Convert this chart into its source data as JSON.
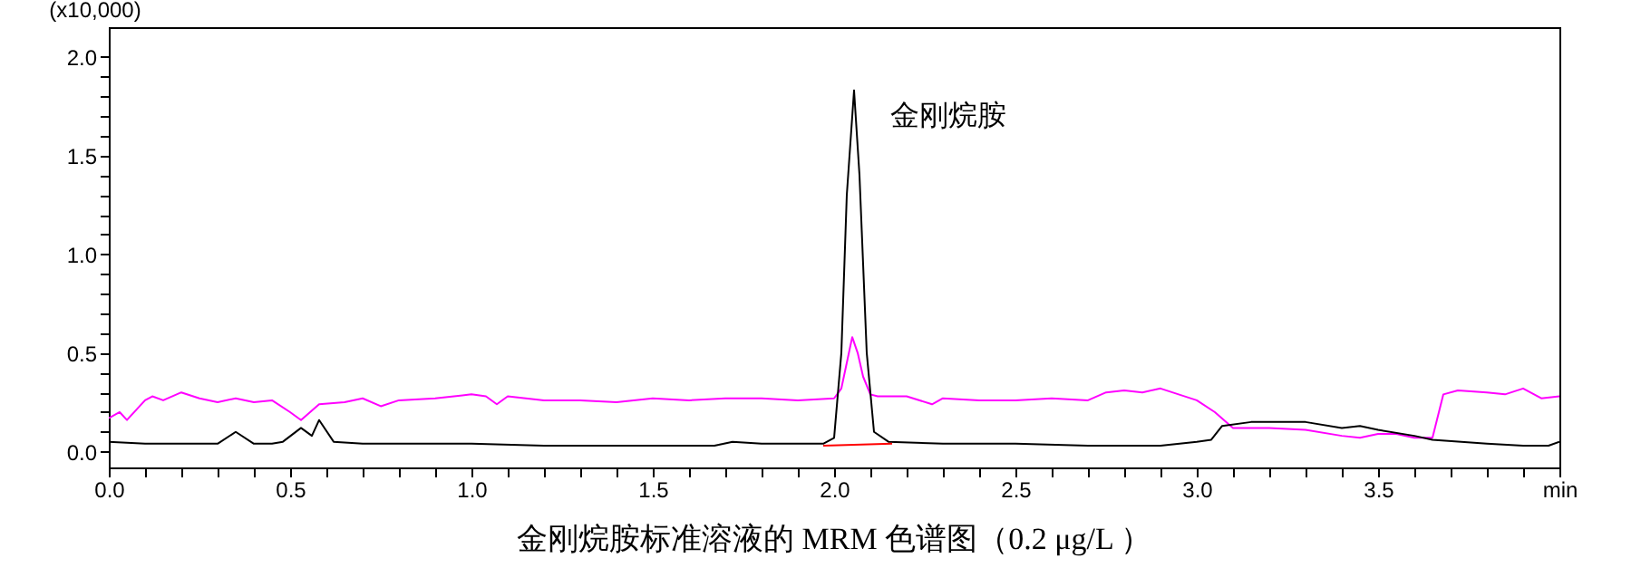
{
  "chart_data": {
    "type": "line",
    "title": "金刚烷胺标准溶液的 MRM 色谱图（0.2 μg/L ）",
    "ylabel": "(x10,000)",
    "annotations": [
      {
        "text": "金刚烷胺",
        "x": 2.055,
        "y": 1.83
      }
    ],
    "xlim": [
      0,
      4.0
    ],
    "ylim": [
      -0.08,
      2.15
    ],
    "xticks": [
      {
        "value": 0,
        "label": "0.0"
      },
      {
        "value": 0.1,
        "label": null
      },
      {
        "value": 0.2,
        "label": null
      },
      {
        "value": 0.3,
        "label": null
      },
      {
        "value": 0.4,
        "label": null
      },
      {
        "value": 0.5,
        "label": "0.5"
      },
      {
        "value": 0.6,
        "label": null
      },
      {
        "value": 0.7,
        "label": null
      },
      {
        "value": 0.8,
        "label": null
      },
      {
        "value": 0.9,
        "label": null
      },
      {
        "value": 1.0,
        "label": "1.0"
      },
      {
        "value": 1.1,
        "label": null
      },
      {
        "value": 1.2,
        "label": null
      },
      {
        "value": 1.3,
        "label": null
      },
      {
        "value": 1.4,
        "label": null
      },
      {
        "value": 1.5,
        "label": "1.5"
      },
      {
        "value": 1.6,
        "label": null
      },
      {
        "value": 1.7,
        "label": null
      },
      {
        "value": 1.8,
        "label": null
      },
      {
        "value": 1.9,
        "label": null
      },
      {
        "value": 2.0,
        "label": "2.0"
      },
      {
        "value": 2.1,
        "label": null
      },
      {
        "value": 2.2,
        "label": null
      },
      {
        "value": 2.3,
        "label": null
      },
      {
        "value": 2.4,
        "label": null
      },
      {
        "value": 2.5,
        "label": "2.5"
      },
      {
        "value": 2.6,
        "label": null
      },
      {
        "value": 2.7,
        "label": null
      },
      {
        "value": 2.8,
        "label": null
      },
      {
        "value": 2.9,
        "label": null
      },
      {
        "value": 3.0,
        "label": "3.0"
      },
      {
        "value": 3.1,
        "label": null
      },
      {
        "value": 3.2,
        "label": null
      },
      {
        "value": 3.3,
        "label": null
      },
      {
        "value": 3.4,
        "label": null
      },
      {
        "value": 3.5,
        "label": "3.5"
      },
      {
        "value": 3.6,
        "label": null
      },
      {
        "value": 3.7,
        "label": null
      },
      {
        "value": 3.8,
        "label": null
      },
      {
        "value": 3.9,
        "label": null
      },
      {
        "value": 4.0,
        "label": "min"
      }
    ],
    "yticks": [
      {
        "value": 0,
        "label": "0.0"
      },
      {
        "value": 0.1,
        "label": null
      },
      {
        "value": 0.2,
        "label": null
      },
      {
        "value": 0.3,
        "label": null
      },
      {
        "value": 0.4,
        "label": null
      },
      {
        "value": 0.5,
        "label": "0.5"
      },
      {
        "value": 0.6,
        "label": null
      },
      {
        "value": 0.7,
        "label": null
      },
      {
        "value": 0.8,
        "label": null
      },
      {
        "value": 0.9,
        "label": null
      },
      {
        "value": 1.0,
        "label": "1.0"
      },
      {
        "value": 1.1,
        "label": null
      },
      {
        "value": 1.2,
        "label": null
      },
      {
        "value": 1.3,
        "label": null
      },
      {
        "value": 1.4,
        "label": null
      },
      {
        "value": 1.5,
        "label": "1.5"
      },
      {
        "value": 1.6,
        "label": null
      },
      {
        "value": 1.7,
        "label": null
      },
      {
        "value": 1.8,
        "label": null
      },
      {
        "value": 1.9,
        "label": null
      },
      {
        "value": 2.0,
        "label": "2.0"
      }
    ],
    "grid": false,
    "marker": "none",
    "line_style": "solid",
    "series": [
      {
        "color": "#ff00ff",
        "x": [
          0,
          0.03,
          0.05,
          0.1,
          0.12,
          0.15,
          0.2,
          0.25,
          0.3,
          0.35,
          0.4,
          0.45,
          0.5,
          0.53,
          0.58,
          0.65,
          0.7,
          0.75,
          0.8,
          0.9,
          1.0,
          1.04,
          1.07,
          1.1,
          1.15,
          1.2,
          1.3,
          1.4,
          1.5,
          1.6,
          1.7,
          1.8,
          1.9,
          2.0,
          2.02,
          2.035,
          2.05,
          2.065,
          2.08,
          2.1,
          2.12,
          2.2,
          2.27,
          2.3,
          2.4,
          2.5,
          2.6,
          2.7,
          2.75,
          2.8,
          2.85,
          2.9,
          2.95,
          3.0,
          3.05,
          3.1,
          3.2,
          3.3,
          3.4,
          3.45,
          3.5,
          3.55,
          3.6,
          3.65,
          3.68,
          3.72,
          3.8,
          3.85,
          3.9,
          3.95,
          4.0
        ],
        "values": [
          0.17,
          0.2,
          0.16,
          0.26,
          0.28,
          0.26,
          0.3,
          0.27,
          0.25,
          0.27,
          0.25,
          0.26,
          0.2,
          0.16,
          0.24,
          0.25,
          0.27,
          0.23,
          0.26,
          0.27,
          0.29,
          0.28,
          0.24,
          0.28,
          0.27,
          0.26,
          0.26,
          0.25,
          0.27,
          0.26,
          0.27,
          0.27,
          0.26,
          0.27,
          0.32,
          0.45,
          0.58,
          0.5,
          0.38,
          0.29,
          0.28,
          0.28,
          0.24,
          0.27,
          0.26,
          0.26,
          0.27,
          0.26,
          0.3,
          0.31,
          0.3,
          0.32,
          0.29,
          0.26,
          0.2,
          0.12,
          0.12,
          0.11,
          0.08,
          0.07,
          0.09,
          0.09,
          0.07,
          0.07,
          0.29,
          0.31,
          0.3,
          0.29,
          0.32,
          0.27,
          0.28
        ]
      },
      {
        "color": "#000000",
        "x": [
          0,
          0.1,
          0.2,
          0.25,
          0.3,
          0.35,
          0.4,
          0.45,
          0.48,
          0.53,
          0.56,
          0.58,
          0.62,
          0.7,
          0.8,
          1.0,
          1.2,
          1.5,
          1.67,
          1.72,
          1.8,
          1.97,
          2.0,
          2.02,
          2.035,
          2.055,
          2.07,
          2.09,
          2.11,
          2.15,
          2.3,
          2.5,
          2.7,
          2.9,
          3.0,
          3.04,
          3.07,
          3.15,
          3.3,
          3.4,
          3.45,
          3.5,
          3.6,
          3.65,
          3.8,
          3.9,
          3.97,
          4.0
        ],
        "values": [
          0.05,
          0.04,
          0.04,
          0.04,
          0.04,
          0.1,
          0.04,
          0.04,
          0.05,
          0.12,
          0.08,
          0.16,
          0.05,
          0.04,
          0.04,
          0.04,
          0.03,
          0.03,
          0.03,
          0.05,
          0.04,
          0.04,
          0.07,
          0.5,
          1.3,
          1.83,
          1.4,
          0.5,
          0.1,
          0.05,
          0.04,
          0.04,
          0.03,
          0.03,
          0.05,
          0.06,
          0.13,
          0.15,
          0.15,
          0.12,
          0.13,
          0.11,
          0.08,
          0.06,
          0.04,
          0.03,
          0.03,
          0.05
        ]
      },
      {
        "color": "#ff0000",
        "x": [
          1.97,
          2.16
        ],
        "values": [
          0.03,
          0.04
        ]
      }
    ]
  }
}
